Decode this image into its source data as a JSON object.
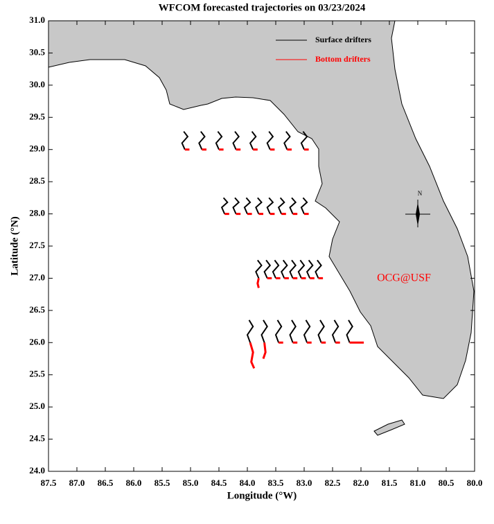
{
  "chart_data": {
    "type": "line",
    "title": "WFCOM forecasted trajectories on 03/23/2024",
    "x_label": "Longitude (°W)",
    "y_label": "Latitude (°N)",
    "annotation": "OCG@USF",
    "compass_label": "N",
    "legend": "upper right",
    "xlim": [
      87.5,
      80.0
    ],
    "ylim": [
      24.0,
      31.0
    ],
    "xticks": [
      87.5,
      {
        "value": 87,
        "label": "87.0"
      },
      86.5,
      {
        "value": 86,
        "label": "86.0"
      },
      85.5,
      {
        "value": 85,
        "label": "85.0"
      },
      84.5,
      {
        "value": 84,
        "label": "84.0"
      },
      83.5,
      {
        "value": 83,
        "label": "83.0"
      },
      82.5,
      {
        "value": 82,
        "label": "82.0"
      },
      81.5,
      {
        "value": 81,
        "label": "81.0"
      },
      80.5,
      {
        "value": 80,
        "label": "80.0"
      }
    ],
    "yticks": [
      {
        "value": 24,
        "label": "24.0"
      },
      24.5,
      {
        "value": 25,
        "label": "25.0"
      },
      25.5,
      {
        "value": 26,
        "label": "26.0"
      },
      26.5,
      {
        "value": 27,
        "label": "27.0"
      },
      27.5,
      {
        "value": 28,
        "label": "28.0"
      },
      28.5,
      {
        "value": 29,
        "label": "29.0"
      },
      29.5,
      {
        "value": 30,
        "label": "30.0"
      },
      30.5,
      {
        "value": 31,
        "label": "31.0"
      }
    ],
    "series": [
      {
        "name": "Surface drifters",
        "color": "#000000",
        "x": [
          85.1,
          85.15,
          85.05,
          85.12,
          null,
          84.8,
          84.85,
          84.75,
          84.82,
          null,
          84.5,
          84.55,
          84.45,
          84.52,
          null,
          84.2,
          84.25,
          84.15,
          84.22,
          null,
          83.9,
          83.95,
          83.85,
          83.92,
          null,
          83.6,
          83.65,
          83.55,
          83.62,
          null,
          83.3,
          83.35,
          83.25,
          83.32,
          null,
          83.0,
          83.05,
          82.95,
          83.02,
          null,
          84.4,
          84.45,
          84.35,
          84.42,
          null,
          84.2,
          84.25,
          84.15,
          84.22,
          null,
          84.0,
          84.05,
          83.95,
          84.02,
          null,
          83.8,
          83.85,
          83.75,
          83.82,
          null,
          83.6,
          83.65,
          83.55,
          83.62,
          null,
          83.4,
          83.45,
          83.35,
          83.42,
          null,
          83.2,
          83.25,
          83.15,
          83.22,
          null,
          83.0,
          83.05,
          82.95,
          83.02,
          null,
          83.8,
          83.85,
          83.75,
          83.82,
          null,
          83.65,
          83.7,
          83.6,
          83.67,
          null,
          83.5,
          83.55,
          83.45,
          83.52,
          null,
          83.35,
          83.4,
          83.3,
          83.37,
          null,
          83.2,
          83.25,
          83.15,
          83.22,
          null,
          83.05,
          83.1,
          83.0,
          83.07,
          null,
          82.9,
          82.95,
          82.85,
          82.92,
          null,
          82.75,
          82.8,
          82.7,
          82.77,
          null,
          83.95,
          84.0,
          83.9,
          83.97,
          null,
          83.7,
          83.75,
          83.65,
          83.72,
          null,
          83.45,
          83.5,
          83.4,
          83.47,
          null,
          83.2,
          83.25,
          83.15,
          83.22,
          null,
          82.95,
          83.0,
          82.9,
          82.97,
          null,
          82.7,
          82.75,
          82.65,
          82.72,
          null,
          82.45,
          82.5,
          82.4,
          82.47,
          null,
          82.2,
          82.25,
          82.15,
          82.22
        ],
        "values": [
          29.0,
          29.1,
          29.2,
          29.28,
          null,
          29.0,
          29.1,
          29.2,
          29.28,
          null,
          29.0,
          29.1,
          29.2,
          29.28,
          null,
          29.0,
          29.1,
          29.2,
          29.28,
          null,
          29.0,
          29.1,
          29.2,
          29.28,
          null,
          29.0,
          29.1,
          29.2,
          29.28,
          null,
          29.0,
          29.1,
          29.2,
          29.28,
          null,
          29.0,
          29.1,
          29.2,
          29.28,
          null,
          28.0,
          28.1,
          28.18,
          28.25,
          null,
          28.0,
          28.1,
          28.18,
          28.25,
          null,
          28.0,
          28.1,
          28.18,
          28.25,
          null,
          28.0,
          28.1,
          28.18,
          28.25,
          null,
          28.0,
          28.1,
          28.18,
          28.25,
          null,
          28.0,
          28.1,
          28.18,
          28.25,
          null,
          28.0,
          28.1,
          28.18,
          28.25,
          null,
          28.0,
          28.1,
          28.18,
          28.25,
          null,
          27.0,
          27.1,
          27.2,
          27.28,
          null,
          27.0,
          27.1,
          27.2,
          27.28,
          null,
          27.0,
          27.1,
          27.2,
          27.28,
          null,
          27.0,
          27.1,
          27.2,
          27.28,
          null,
          27.0,
          27.1,
          27.2,
          27.28,
          null,
          27.0,
          27.1,
          27.2,
          27.28,
          null,
          27.0,
          27.1,
          27.2,
          27.28,
          null,
          27.0,
          27.1,
          27.2,
          27.28,
          null,
          26.0,
          26.12,
          26.25,
          26.35,
          null,
          26.0,
          26.12,
          26.25,
          26.35,
          null,
          26.0,
          26.12,
          26.25,
          26.35,
          null,
          26.0,
          26.12,
          26.25,
          26.35,
          null,
          26.0,
          26.12,
          26.25,
          26.35,
          null,
          26.0,
          26.12,
          26.25,
          26.35,
          null,
          26.0,
          26.12,
          26.25,
          26.35,
          null,
          26.0,
          26.12,
          26.25,
          26.35
        ]
      },
      {
        "name": "Bottom drifters",
        "color": "#ff0000",
        "x": [
          85.1,
          85.02,
          null,
          84.8,
          84.72,
          null,
          84.5,
          84.42,
          null,
          84.2,
          84.12,
          null,
          83.9,
          83.82,
          null,
          83.6,
          83.52,
          null,
          83.3,
          83.22,
          null,
          83.0,
          82.92,
          null,
          84.4,
          84.32,
          null,
          84.2,
          84.12,
          null,
          84.0,
          83.92,
          null,
          83.8,
          83.72,
          null,
          83.6,
          83.52,
          null,
          83.4,
          83.32,
          null,
          83.2,
          83.12,
          null,
          83.0,
          82.92,
          null,
          83.8,
          83.82,
          83.8,
          null,
          83.65,
          83.57,
          null,
          83.5,
          83.42,
          null,
          83.35,
          83.27,
          null,
          83.2,
          83.12,
          null,
          83.05,
          82.97,
          null,
          82.9,
          82.82,
          null,
          82.75,
          82.67,
          null,
          83.95,
          83.9,
          83.93,
          83.88,
          null,
          83.7,
          83.68,
          83.72,
          null,
          83.45,
          83.37,
          null,
          83.2,
          83.12,
          null,
          82.95,
          82.87,
          null,
          82.7,
          82.62,
          null,
          82.45,
          82.37,
          null,
          82.2,
          82.05,
          81.95
        ],
        "values": [
          29.0,
          29.0,
          null,
          29.0,
          29.0,
          null,
          29.0,
          29.0,
          null,
          29.0,
          29.0,
          null,
          29.0,
          29.0,
          null,
          29.0,
          29.0,
          null,
          29.0,
          29.0,
          null,
          29.0,
          29.0,
          null,
          28.0,
          28.0,
          null,
          28.0,
          28.0,
          null,
          28.0,
          28.0,
          null,
          28.0,
          28.0,
          null,
          28.0,
          28.0,
          null,
          28.0,
          28.0,
          null,
          28.0,
          28.0,
          null,
          28.0,
          28.0,
          null,
          27.0,
          26.92,
          26.85,
          null,
          27.0,
          27.0,
          null,
          27.0,
          27.0,
          null,
          27.0,
          27.0,
          null,
          27.0,
          27.0,
          null,
          27.0,
          27.0,
          null,
          27.0,
          27.0,
          null,
          27.0,
          27.0,
          null,
          26.0,
          25.85,
          25.7,
          25.6,
          null,
          26.0,
          25.85,
          25.75,
          null,
          26.0,
          26.0,
          null,
          26.0,
          26.0,
          null,
          26.0,
          26.0,
          null,
          26.0,
          26.0,
          null,
          26.0,
          26.0,
          null,
          26.0,
          26.0,
          26.0
        ]
      }
    ]
  }
}
